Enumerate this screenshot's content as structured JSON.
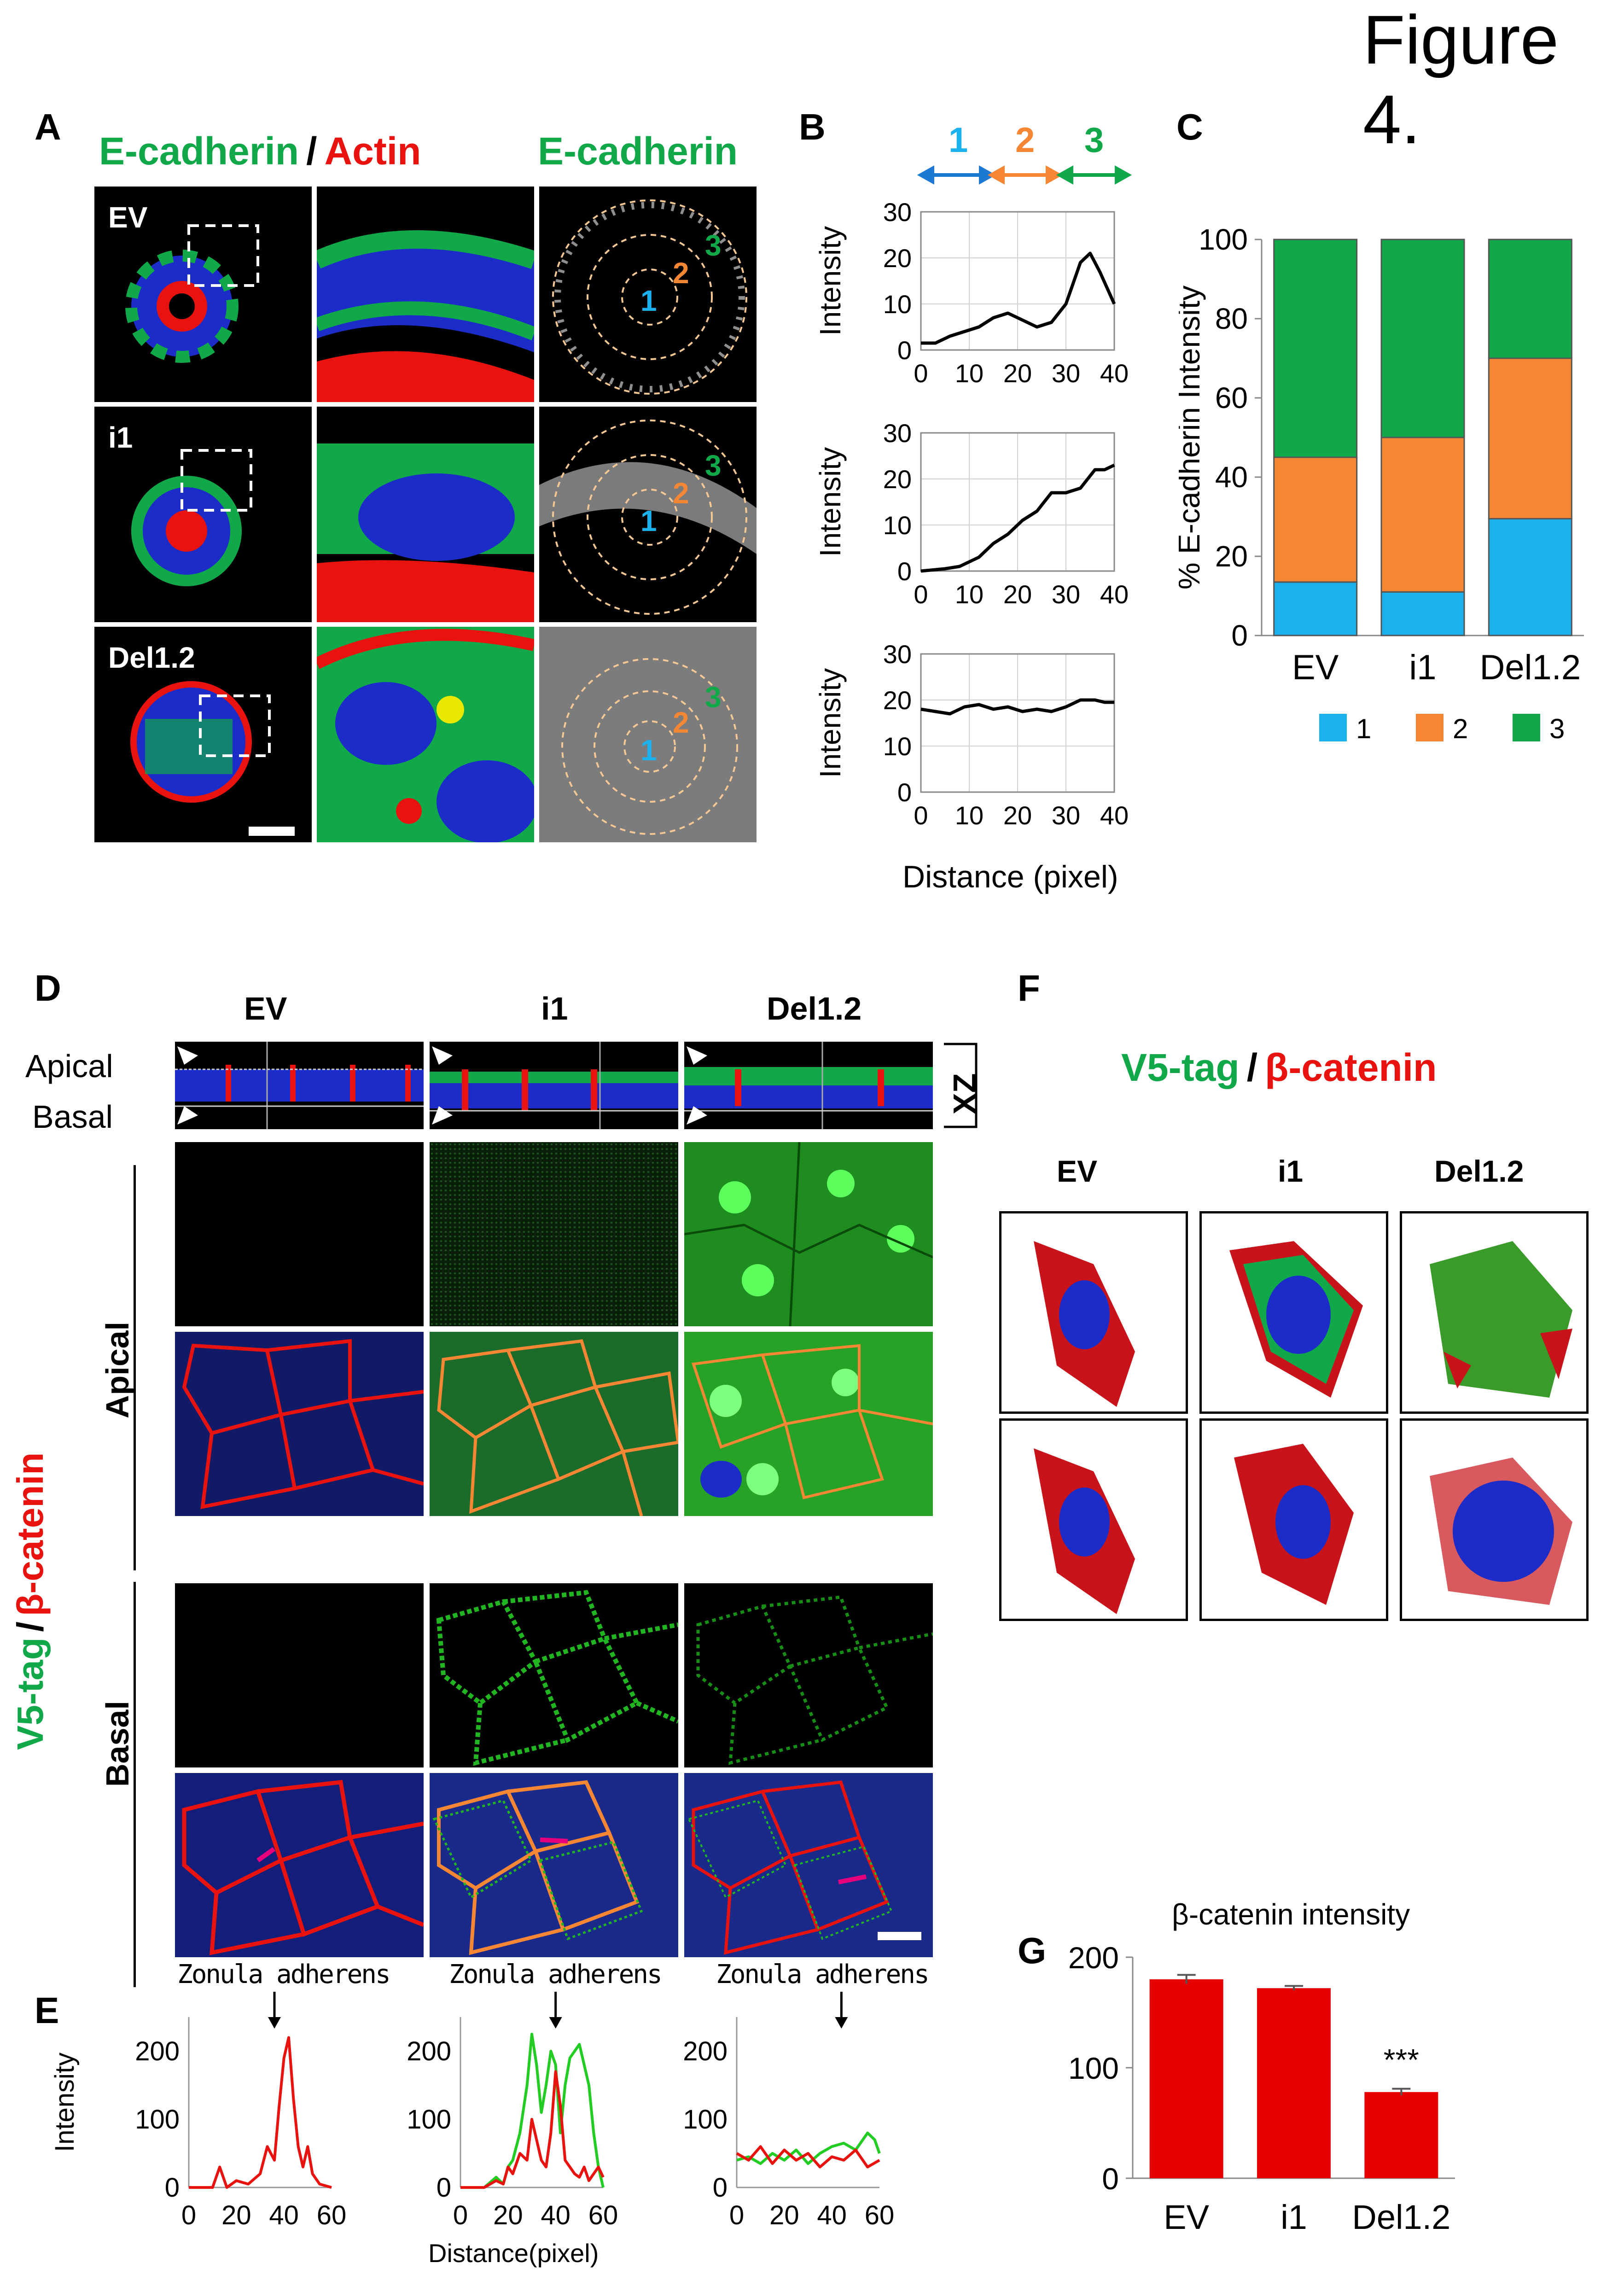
{
  "figure_title": "Figure 4.",
  "panel_letters": {
    "a": "A",
    "b": "B",
    "c": "C",
    "d": "D",
    "e": "E",
    "f": "F",
    "g": "G"
  },
  "panel_a": {
    "header_green": "E-cadherin",
    "header_sep": "/",
    "header_red": "Actin",
    "header_right": "E-cadherin",
    "rows": [
      "EV",
      "i1",
      "Del1.2"
    ],
    "ring_labels": [
      "1",
      "2",
      "3"
    ]
  },
  "panel_b": {
    "arrow_labels": [
      "1",
      "2",
      "3"
    ],
    "ylabel": "Intensity",
    "xlabel": "Distance (pixel)",
    "yticks": [
      "0",
      "10",
      "20",
      "30"
    ],
    "xticks": [
      "0",
      "10",
      "20",
      "30",
      "40"
    ]
  },
  "panel_c": {
    "ylabel": "% E-cadherin Intensity",
    "yticks": [
      "0",
      "20",
      "40",
      "60",
      "80",
      "100"
    ],
    "legend": [
      "1",
      "2",
      "3"
    ]
  },
  "panel_d": {
    "cols": [
      "EV",
      "i1",
      "Del1.2"
    ],
    "apical_label": "Apical",
    "basal_label": "Basal",
    "xz_label": "XZ",
    "section_apical": "Apical",
    "section_basal": "Basal",
    "vlabel_green": "V5-tag",
    "vlabel_sep": "/",
    "vlabel_red": "β-catenin"
  },
  "panel_e": {
    "annotation": "Zonula adherens",
    "ylabel": "Intensity",
    "xlabel": "Distance(pixel)",
    "yticks": [
      "0",
      "100",
      "200"
    ],
    "xticks": [
      "0",
      "20",
      "40",
      "60"
    ]
  },
  "panel_f": {
    "header_green": "V5-tag",
    "header_sep": "/",
    "header_red": "β-catenin",
    "cols": [
      "EV",
      "i1",
      "Del1.2"
    ]
  },
  "panel_g": {
    "title": "β-catenin intensity",
    "yticks": [
      "0",
      "100",
      "200"
    ],
    "significance": "***"
  },
  "colors": {
    "blue": "#1ab1ec",
    "orange": "#f58634",
    "green": "#11a84a",
    "red": "#e8130f",
    "dapi": "#1b2cc8",
    "bar_red": "#e60000"
  },
  "chart_data": [
    {
      "type": "line",
      "panel": "B",
      "title": "",
      "xlabel": "Distance (pixel)",
      "ylabel": "Intensity",
      "xlim": [
        0,
        40
      ],
      "ylim": [
        0,
        30
      ],
      "series": [
        {
          "x": [
            0,
            3,
            6,
            9,
            12,
            15,
            18,
            21,
            24,
            27,
            30,
            33,
            35,
            37,
            40
          ],
          "values": [
            1.5,
            1.5,
            3,
            4,
            5,
            7,
            8,
            6.5,
            5,
            6,
            10,
            19,
            21,
            17,
            10
          ]
        },
        {
          "x": [
            0,
            5,
            8,
            10,
            12,
            15,
            18,
            21,
            24,
            27,
            30,
            33,
            36,
            38,
            40
          ],
          "values": [
            0,
            0.5,
            1,
            2,
            3,
            6,
            8,
            11,
            13,
            17,
            17,
            18,
            22,
            22,
            23
          ]
        },
        {
          "x": [
            0,
            3,
            6,
            9,
            12,
            15,
            18,
            21,
            24,
            27,
            30,
            33,
            36,
            38,
            40
          ],
          "values": [
            18,
            17.5,
            17,
            18.5,
            19,
            18,
            18.5,
            17.5,
            18,
            17.5,
            18.5,
            20,
            20,
            19.5,
            19.5
          ]
        }
      ]
    },
    {
      "type": "bar",
      "panel": "C",
      "stacked": true,
      "title": "",
      "ylabel": "% E-cadherin Intensity",
      "ylim": [
        0,
        100
      ],
      "categories": [
        "EV",
        "i1",
        "Del1.2"
      ],
      "series": [
        {
          "name": "1",
          "values": [
            13.5,
            11,
            29.5
          ]
        },
        {
          "name": "2",
          "values": [
            31.5,
            39,
            40.5
          ]
        },
        {
          "name": "3",
          "values": [
            55,
            50,
            30
          ]
        }
      ]
    },
    {
      "type": "line",
      "panel": "E",
      "title": "",
      "xlabel": "Distance(pixel)",
      "ylabel": "Intensity",
      "xlim": [
        0,
        60
      ],
      "ylim": [
        0,
        250
      ],
      "series": [
        {
          "x": [
            0,
            10,
            13,
            16,
            20,
            25,
            30,
            33,
            36,
            38,
            40,
            42,
            44,
            46,
            48,
            50,
            52,
            55,
            60
          ],
          "values": [
            0,
            0,
            30,
            0,
            10,
            5,
            20,
            60,
            40,
            120,
            190,
            220,
            130,
            60,
            30,
            60,
            20,
            5,
            0
          ]
        },
        {
          "x": [
            0,
            10,
            15,
            18,
            20,
            22,
            25,
            28,
            30,
            32,
            34,
            36,
            38,
            40,
            42,
            44,
            46,
            48,
            50,
            52,
            54,
            56,
            58,
            60
          ],
          "values": [
            0,
            0,
            10,
            5,
            30,
            20,
            50,
            40,
            100,
            70,
            40,
            30,
            80,
            170,
            120,
            40,
            30,
            20,
            15,
            30,
            10,
            20,
            30,
            15
          ]
        },
        {
          "x": [
            0,
            10,
            15,
            18,
            20,
            22,
            25,
            28,
            30,
            32,
            34,
            36,
            38,
            40,
            42,
            44,
            46,
            48,
            50,
            52,
            54,
            56,
            58,
            60
          ],
          "values": [
            0,
            0,
            15,
            5,
            30,
            40,
            80,
            150,
            225,
            180,
            110,
            150,
            200,
            180,
            80,
            150,
            190,
            200,
            210,
            180,
            150,
            80,
            30,
            0
          ]
        },
        {
          "x": [
            0,
            5,
            10,
            15,
            20,
            25,
            30,
            35,
            40,
            45,
            50,
            55,
            60
          ],
          "values": [
            50,
            40,
            60,
            35,
            55,
            40,
            50,
            30,
            45,
            40,
            55,
            30,
            40
          ]
        },
        {
          "x": [
            0,
            5,
            10,
            15,
            20,
            25,
            30,
            35,
            40,
            45,
            50,
            55,
            58,
            60
          ],
          "values": [
            40,
            45,
            35,
            50,
            40,
            55,
            35,
            50,
            60,
            65,
            55,
            80,
            70,
            50
          ]
        }
      ]
    },
    {
      "type": "bar",
      "panel": "G",
      "title": "β-catenin intensity",
      "ylabel": "",
      "ylim": [
        0,
        200
      ],
      "categories": [
        "EV",
        "i1",
        "Del1.2"
      ],
      "values": [
        180,
        172,
        78
      ],
      "errors": [
        4,
        2,
        3
      ]
    }
  ]
}
